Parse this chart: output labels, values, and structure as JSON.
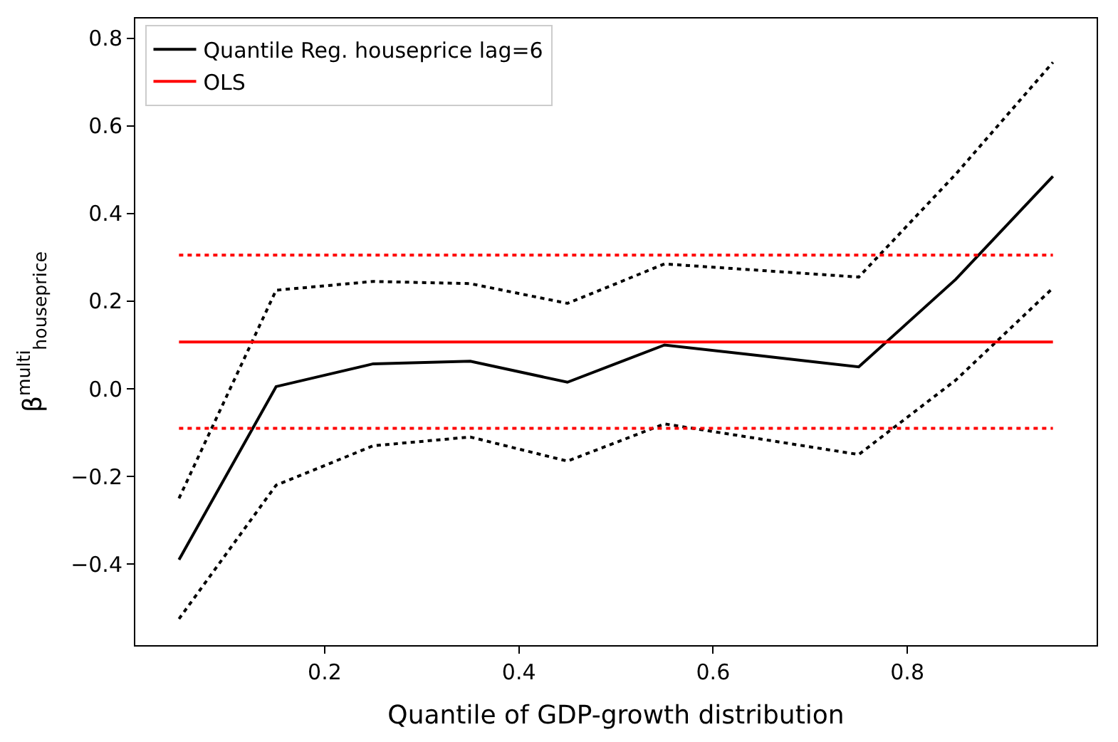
{
  "chart_data": {
    "type": "line",
    "xlabel": "Quantile of GDP-growth distribution",
    "ylabel": "β$^{multi}$$_{houseprice}$",
    "x": [
      0.05,
      0.15,
      0.25,
      0.35,
      0.45,
      0.55,
      0.65,
      0.75,
      0.85,
      0.95
    ],
    "series": [
      {
        "name": "Quantile Reg. houseprice lag=6",
        "color": "#000000",
        "line_style": "solid",
        "values": [
          -0.39,
          0.005,
          0.057,
          0.063,
          0.015,
          0.1,
          0.075,
          0.05,
          0.25,
          0.485
        ]
      },
      {
        "color": "#000000",
        "line_style": "dotted",
        "values": [
          -0.25,
          0.225,
          0.245,
          0.24,
          0.195,
          0.285,
          0.27,
          0.255,
          0.49,
          0.745
        ]
      },
      {
        "color": "#000000",
        "line_style": "dotted",
        "values": [
          -0.525,
          -0.22,
          -0.13,
          -0.11,
          -0.165,
          -0.08,
          -0.115,
          -0.15,
          0.02,
          0.23
        ]
      },
      {
        "name": "OLS",
        "color": "#ff0000",
        "line_style": "solid",
        "values": [
          0.107,
          0.107,
          0.107,
          0.107,
          0.107,
          0.107,
          0.107,
          0.107,
          0.107,
          0.107
        ]
      },
      {
        "color": "#ff0000",
        "line_style": "dotted",
        "values": [
          0.305,
          0.305,
          0.305,
          0.305,
          0.305,
          0.305,
          0.305,
          0.305,
          0.305,
          0.305
        ]
      },
      {
        "color": "#ff0000",
        "line_style": "dotted",
        "values": [
          -0.09,
          -0.09,
          -0.09,
          -0.09,
          -0.09,
          -0.09,
          -0.09,
          -0.09,
          -0.09,
          -0.09
        ]
      }
    ],
    "xlim": [
      0.005,
      0.995
    ],
    "xticks": [
      0.2,
      0.4,
      0.6,
      0.8
    ],
    "ylim": [
      -0.585,
      0.845
    ],
    "yticks": [
      {
        "value": -0.4,
        "label": "−0.4"
      },
      {
        "value": -0.2,
        "label": "−0.2"
      },
      {
        "value": 0.0,
        "label": "0.0"
      },
      {
        "value": 0.2,
        "label": "0.2"
      },
      {
        "value": 0.4,
        "label": "0.4"
      },
      {
        "value": 0.6,
        "label": "0.6"
      },
      {
        "value": 0.8,
        "label": "0.8"
      }
    ],
    "legend": "top left",
    "marker": "none"
  }
}
